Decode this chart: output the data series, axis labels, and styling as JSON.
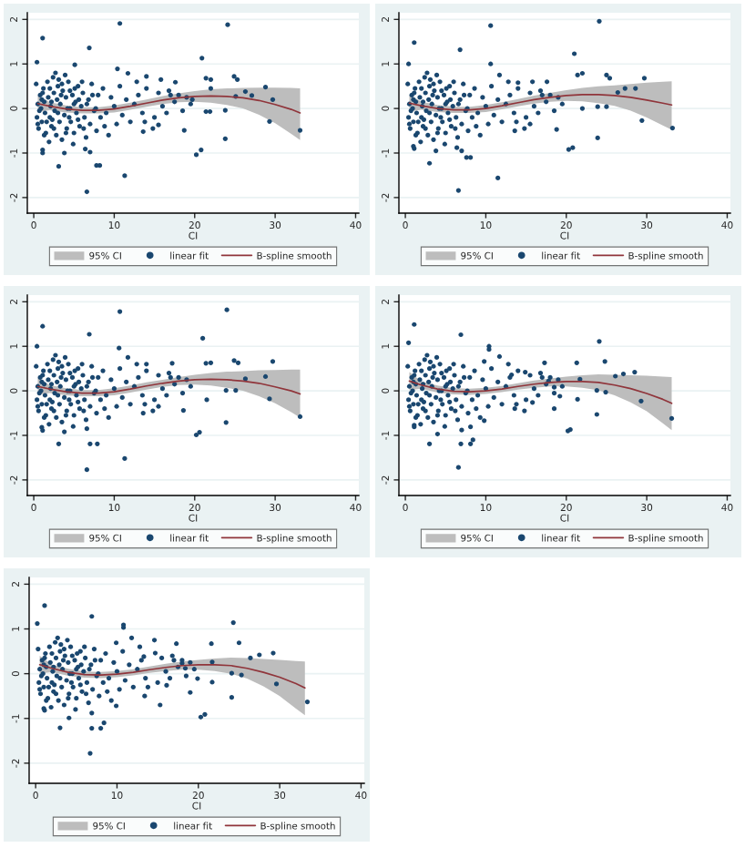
{
  "chart_data": [
    {
      "type": "scatter",
      "xlabel": "CI",
      "xlim": [
        -0.8,
        40.4
      ],
      "ylim": [
        -2.35,
        2.15
      ],
      "xticks": [
        0,
        10,
        20,
        30,
        40
      ],
      "yticks": [
        -2,
        -1,
        0,
        1,
        2
      ],
      "grid": "y",
      "legend": "bottom",
      "annotations": [
        "95% CI"
      ],
      "series": [
        {
          "name": "linear fit",
          "marker": "circle",
          "color": "#1a476f",
          "x": [
            0.3,
            0.4,
            0.5,
            0.6,
            0.8,
            0.9,
            1.0,
            1.2,
            1.3,
            1.4,
            1.5,
            1.7,
            1.8,
            2.0,
            2.1,
            2.2,
            2.4,
            2.5,
            2.6,
            2.8,
            2.9,
            3.0,
            3.2,
            3.3,
            3.5,
            3.6,
            3.8,
            4.0,
            4.1,
            4.3,
            4.5,
            4.6,
            4.8,
            5.0,
            5.2,
            5.3,
            5.5,
            5.7,
            5.9,
            6.1,
            6.3,
            6.5,
            6.8,
            7.0,
            7.2,
            7.5,
            7.8,
            8.0,
            8.3,
            8.6,
            9.0,
            9.3,
            9.6,
            10.0,
            10.3,
            10.7,
            11.0,
            11.5,
            12.0,
            12.5,
            1.1,
            2.3,
            3.4,
            4.4,
            5.6,
            6.6,
            7.7,
            0.7,
            1.9,
            2.7,
            3.9,
            4.9,
            13.0,
            13.5,
            14.0,
            14.8,
            15.0,
            15.5,
            16.0,
            16.5,
            17.0,
            17.5,
            18.0,
            18.5,
            19.0,
            19.5,
            13.8,
            16.8,
            12.8,
            0.5,
            1.0,
            1.6,
            2.0,
            2.5,
            3.0,
            3.5,
            4.0,
            4.5,
            5.0,
            5.5,
            6.0,
            1.3,
            2.2,
            3.1,
            4.2,
            5.1,
            6.2,
            7.3,
            8.8,
            10.7,
            24.1,
            1.1,
            6.9,
            20.9,
            0.4,
            5.1,
            10.4,
            24.9,
            25.3,
            21.4,
            22.0,
            28.8,
            26.3,
            27.1,
            29.7,
            25.1,
            22.0,
            19.7,
            29.3,
            33.1,
            23.8,
            21.9,
            21.4,
            23.8,
            18.7,
            20.8,
            20.2,
            3.1,
            8.2,
            7.8,
            11.3,
            6.6,
            1.1,
            1.1,
            3.8,
            6.4,
            7.0,
            13.6,
            15.5,
            17.6,
            15.8,
            14.0,
            11.7
          ],
          "values": [
            0.55,
            -0.2,
            0.1,
            -0.45,
            0.3,
            0.0,
            -0.3,
            0.45,
            0.15,
            -0.1,
            -0.55,
            0.6,
            0.25,
            -0.2,
            0.05,
            -0.4,
            0.7,
            0.35,
            -0.05,
            -0.6,
            0.2,
            0.5,
            -0.3,
            0.1,
            -0.7,
            0.4,
            -0.15,
            0.25,
            -0.45,
            0.6,
            0.0,
            -0.3,
            0.3,
            -0.55,
            0.15,
            -0.1,
            0.5,
            -0.4,
            0.05,
            0.35,
            -0.2,
            -0.65,
            0.2,
            -0.35,
            0.55,
            -0.05,
            -0.5,
            0.3,
            -0.2,
            0.45,
            -0.1,
            -0.6,
            0.25,
            0.05,
            -0.35,
            0.5,
            -0.15,
            0.2,
            -0.3,
            0.1,
            0.35,
            -0.25,
            0.3,
            -0.2,
            0.2,
            0.1,
            0.0,
            -0.05,
            -0.75,
            0.8,
            0.75,
            -0.8,
            0.3,
            -0.1,
            0.45,
            -0.45,
            -0.2,
            0.35,
            0.05,
            -0.1,
            0.3,
            0.15,
            0.3,
            -0.05,
            0.25,
            0.1,
            -0.3,
            0.4,
            0.6,
            -0.35,
            0.2,
            -0.3,
            0.45,
            -0.45,
            -0.1,
            0.55,
            -0.55,
            0.4,
            0.1,
            -0.25,
            0.6,
            -0.6,
            0.15,
            0.65,
            0.0,
            0.45,
            -0.45,
            0.3,
            -0.4,
            1.91,
            1.88,
            1.58,
            1.36,
            1.13,
            1.04,
            0.98,
            0.89,
            0.72,
            0.65,
            0.68,
            0.65,
            0.48,
            0.38,
            0.29,
            0.2,
            0.27,
            0.45,
            0.2,
            -0.29,
            -0.49,
            -0.04,
            -0.07,
            -0.07,
            -0.68,
            -0.49,
            -0.93,
            -1.04,
            -1.3,
            -1.28,
            -1.28,
            -1.51,
            -1.87,
            -0.93,
            -1.0,
            -1.0,
            -0.91,
            -0.98,
            -0.52,
            -0.37,
            0.59,
            0.65,
            0.72,
            0.79
          ]
        },
        {
          "name": "B-spline smooth",
          "type": "line",
          "color": "#90353b",
          "x": [
            0.5,
            2,
            4,
            6,
            8,
            10,
            12,
            14,
            16,
            18,
            20,
            22,
            24,
            26,
            28,
            30,
            32,
            33.1
          ],
          "values": [
            0.11,
            0.05,
            -0.01,
            -0.04,
            -0.04,
            -0.01,
            0.05,
            0.12,
            0.19,
            0.24,
            0.27,
            0.28,
            0.27,
            0.24,
            0.18,
            0.09,
            -0.02,
            -0.1
          ],
          "lower": [
            -0.08,
            -0.04,
            -0.09,
            -0.11,
            -0.11,
            -0.09,
            -0.03,
            0.04,
            0.1,
            0.14,
            0.15,
            0.13,
            0.08,
            0.0,
            -0.14,
            -0.33,
            -0.57,
            -0.71
          ],
          "upper": [
            0.3,
            0.14,
            0.07,
            0.03,
            0.03,
            0.07,
            0.13,
            0.2,
            0.28,
            0.34,
            0.39,
            0.43,
            0.45,
            0.46,
            0.47,
            0.47,
            0.46,
            0.45
          ]
        }
      ]
    },
    {
      "type": "scatter",
      "xlabel": "CI",
      "xlim": [
        -0.8,
        40.4
      ],
      "ylim": [
        -2.35,
        2.15
      ],
      "xticks": [
        0,
        10,
        20,
        30,
        40
      ],
      "yticks": [
        -2,
        -1,
        0,
        1,
        2
      ],
      "grid": "y",
      "legend": "bottom",
      "annotations": [
        "95% CI"
      ],
      "series": [
        {
          "name": "linear fit",
          "marker": "circle",
          "color": "#1a476f",
          "x": [
            0.3,
            0.4,
            0.5,
            0.6,
            0.8,
            0.9,
            1.0,
            1.2,
            1.3,
            1.4,
            1.5,
            1.7,
            1.8,
            2.0,
            2.1,
            2.2,
            2.4,
            2.5,
            2.6,
            2.8,
            2.9,
            3.0,
            3.2,
            3.3,
            3.5,
            3.6,
            3.8,
            4.0,
            4.1,
            4.3,
            4.5,
            4.6,
            4.8,
            5.0,
            5.2,
            5.3,
            5.5,
            5.7,
            5.9,
            6.1,
            6.3,
            6.5,
            6.8,
            7.0,
            7.2,
            7.5,
            7.8,
            8.0,
            8.3,
            8.6,
            9.0,
            9.3,
            9.6,
            10.0,
            10.3,
            10.7,
            11.0,
            11.5,
            12.0,
            12.5,
            1.1,
            2.3,
            3.4,
            4.4,
            5.6,
            6.6,
            7.7,
            0.7,
            1.9,
            2.7,
            3.9,
            4.9,
            13.0,
            13.5,
            14.0,
            14.8,
            15.0,
            15.5,
            16.0,
            16.5,
            17.0,
            17.5,
            18.0,
            18.5,
            19.0,
            19.5,
            13.8,
            16.8,
            12.8,
            0.5,
            1.0,
            1.6,
            2.0,
            2.5,
            3.0,
            3.5,
            4.0,
            4.5,
            5.0,
            5.5,
            6.0,
            1.3,
            2.2,
            3.1,
            4.2,
            5.1,
            6.2,
            7.3,
            8.8,
            10.6,
            24.1,
            1.1,
            6.8,
            21.0,
            0.4,
            10.6,
            22.0,
            21.4,
            25.0,
            25.4,
            29.7,
            28.6,
            27.3,
            26.4,
            25.0,
            23.9,
            22.0,
            29.4,
            33.2,
            23.9,
            18.8,
            20.3,
            20.8,
            3.0,
            8.1,
            7.6,
            11.5,
            6.6,
            1.0,
            1.1,
            3.8,
            6.4,
            7.0,
            13.6,
            15.5,
            17.6,
            15.8,
            14.0,
            11.7
          ],
          "values": [
            0.55,
            -0.2,
            0.1,
            -0.45,
            0.3,
            0.0,
            -0.3,
            0.45,
            0.15,
            -0.1,
            -0.55,
            0.6,
            0.25,
            -0.2,
            0.05,
            -0.4,
            0.7,
            0.35,
            -0.05,
            -0.6,
            0.2,
            0.5,
            -0.3,
            0.1,
            -0.7,
            0.4,
            -0.15,
            0.25,
            -0.45,
            0.6,
            0.0,
            -0.3,
            0.3,
            -0.55,
            0.15,
            -0.1,
            0.5,
            -0.4,
            0.05,
            0.35,
            -0.2,
            -0.65,
            0.2,
            -0.35,
            0.55,
            -0.05,
            -0.5,
            0.3,
            -0.2,
            0.45,
            -0.1,
            -0.6,
            0.25,
            0.05,
            -0.35,
            0.5,
            -0.15,
            0.2,
            -0.3,
            0.1,
            0.35,
            -0.25,
            0.3,
            -0.2,
            0.2,
            0.1,
            0.0,
            -0.05,
            -0.75,
            0.8,
            0.75,
            -0.8,
            0.3,
            -0.1,
            0.45,
            -0.45,
            -0.2,
            0.35,
            0.05,
            -0.1,
            0.3,
            0.15,
            0.3,
            -0.05,
            0.25,
            0.1,
            -0.3,
            0.4,
            0.6,
            -0.35,
            0.2,
            -0.3,
            0.45,
            -0.45,
            -0.1,
            0.55,
            -0.55,
            0.4,
            0.1,
            -0.25,
            0.6,
            -0.6,
            0.15,
            0.65,
            0.0,
            0.45,
            -0.45,
            0.3,
            -0.4,
            1.86,
            1.96,
            1.48,
            1.32,
            1.23,
            1.0,
            1.0,
            0.79,
            0.75,
            0.75,
            0.68,
            0.68,
            0.45,
            0.45,
            0.36,
            0.04,
            0.04,
            0.0,
            -0.27,
            -0.44,
            -0.66,
            -0.47,
            -0.92,
            -0.88,
            -1.23,
            -1.1,
            -1.1,
            -1.56,
            -1.84,
            -0.85,
            -0.9,
            -0.95,
            -0.88,
            -0.95,
            -0.5,
            -0.35,
            0.6,
            0.6,
            0.58,
            0.75
          ]
        },
        {
          "name": "B-spline smooth",
          "type": "line",
          "color": "#90353b",
          "x": [
            0.5,
            2,
            4,
            6,
            8,
            10,
            12,
            14,
            16,
            18,
            20,
            22,
            24,
            26,
            28,
            30,
            32,
            33.1
          ],
          "values": [
            0.12,
            0.06,
            0.0,
            -0.03,
            -0.03,
            0.0,
            0.06,
            0.13,
            0.2,
            0.25,
            0.29,
            0.31,
            0.31,
            0.29,
            0.25,
            0.19,
            0.12,
            0.08
          ],
          "lower": [
            -0.07,
            -0.03,
            -0.08,
            -0.1,
            -0.1,
            -0.08,
            -0.02,
            0.05,
            0.11,
            0.15,
            0.17,
            0.16,
            0.12,
            0.06,
            -0.05,
            -0.2,
            -0.38,
            -0.48
          ],
          "upper": [
            0.31,
            0.15,
            0.08,
            0.04,
            0.04,
            0.08,
            0.14,
            0.21,
            0.29,
            0.35,
            0.41,
            0.46,
            0.5,
            0.52,
            0.55,
            0.58,
            0.6,
            0.61
          ]
        }
      ]
    },
    {
      "type": "scatter",
      "xlabel": "CI",
      "xlim": [
        -0.8,
        40.4
      ],
      "ylim": [
        -2.35,
        2.15
      ],
      "xticks": [
        0,
        10,
        20,
        30,
        40
      ],
      "yticks": [
        -2,
        -1,
        0,
        1,
        2
      ],
      "grid": "y",
      "legend": "bottom",
      "annotations": [
        "95% CI"
      ],
      "series": [
        {
          "name": "linear fit",
          "marker": "circle",
          "color": "#1a476f",
          "x": [
            0.3,
            0.4,
            0.5,
            0.6,
            0.8,
            0.9,
            1.0,
            1.2,
            1.3,
            1.4,
            1.5,
            1.7,
            1.8,
            2.0,
            2.1,
            2.2,
            2.4,
            2.5,
            2.6,
            2.8,
            2.9,
            3.0,
            3.2,
            3.3,
            3.5,
            3.6,
            3.8,
            4.0,
            4.1,
            4.3,
            4.5,
            4.6,
            4.8,
            5.0,
            5.2,
            5.3,
            5.5,
            5.7,
            5.9,
            6.1,
            6.3,
            6.5,
            6.8,
            7.0,
            7.2,
            7.5,
            7.8,
            8.0,
            8.3,
            8.6,
            9.0,
            9.3,
            9.6,
            10.0,
            10.3,
            10.7,
            11.0,
            11.5,
            12.0,
            12.5,
            1.1,
            2.3,
            3.4,
            4.4,
            5.6,
            6.6,
            7.7,
            0.7,
            1.9,
            2.7,
            3.9,
            4.9,
            13.0,
            13.5,
            14.0,
            14.8,
            15.0,
            15.5,
            16.0,
            16.5,
            17.0,
            17.5,
            18.0,
            18.5,
            19.0,
            19.5,
            13.8,
            16.8,
            12.8,
            0.5,
            1.0,
            1.6,
            2.0,
            2.5,
            3.0,
            3.5,
            4.0,
            4.5,
            5.0,
            5.5,
            6.0,
            1.3,
            2.2,
            3.1,
            4.2,
            5.1,
            6.2,
            7.3,
            8.8,
            10.7,
            24.0,
            1.1,
            6.9,
            21.0,
            0.4,
            10.6,
            24.9,
            25.4,
            29.7,
            21.4,
            22.0,
            17.2,
            28.8,
            26.3,
            25.1,
            23.9,
            21.5,
            29.3,
            33.1,
            23.9,
            18.6,
            20.2,
            20.6,
            3.1,
            7.0,
            7.9,
            11.3,
            6.6,
            1.0,
            1.1,
            3.8,
            6.6,
            13.6,
            15.5,
            14.0,
            11.7
          ],
          "values": [
            0.55,
            -0.2,
            0.1,
            -0.45,
            0.3,
            0.0,
            -0.3,
            0.45,
            0.15,
            -0.1,
            -0.55,
            0.6,
            0.25,
            -0.2,
            0.05,
            -0.4,
            0.7,
            0.35,
            -0.05,
            -0.6,
            0.2,
            0.5,
            -0.3,
            0.1,
            -0.7,
            0.4,
            -0.15,
            0.25,
            -0.45,
            0.6,
            0.0,
            -0.3,
            0.3,
            -0.55,
            0.15,
            -0.1,
            0.5,
            -0.4,
            0.05,
            0.35,
            -0.2,
            -0.65,
            0.2,
            -0.35,
            0.55,
            -0.05,
            -0.5,
            0.3,
            -0.2,
            0.45,
            -0.1,
            -0.6,
            0.25,
            0.05,
            -0.35,
            0.5,
            -0.15,
            0.2,
            -0.3,
            0.1,
            0.35,
            -0.25,
            0.3,
            -0.2,
            0.2,
            0.1,
            0.0,
            -0.05,
            -0.75,
            0.8,
            0.75,
            -0.8,
            0.3,
            -0.1,
            0.45,
            -0.45,
            -0.2,
            0.35,
            0.05,
            -0.1,
            0.3,
            0.15,
            0.3,
            -0.05,
            0.25,
            0.1,
            -0.3,
            0.4,
            0.6,
            -0.35,
            0.2,
            -0.3,
            0.45,
            -0.45,
            -0.1,
            0.55,
            -0.55,
            0.4,
            0.1,
            -0.25,
            0.6,
            -0.6,
            0.15,
            0.65,
            0.0,
            0.45,
            -0.45,
            0.3,
            -0.4,
            1.78,
            1.82,
            1.45,
            1.27,
            1.18,
            1.0,
            0.96,
            0.68,
            0.63,
            0.66,
            0.62,
            0.63,
            0.62,
            0.32,
            0.27,
            0.01,
            0.01,
            -0.2,
            -0.18,
            -0.58,
            -0.71,
            -0.44,
            -0.99,
            -0.93,
            -1.19,
            -1.19,
            -1.19,
            -1.52,
            -1.77,
            -0.82,
            -0.89,
            -0.92,
            -0.85,
            -0.5,
            -0.35,
            0.6,
            0.75
          ]
        },
        {
          "name": "B-spline smooth",
          "type": "line",
          "color": "#90353b",
          "x": [
            0.5,
            2,
            4,
            6,
            8,
            10,
            12,
            14,
            16,
            18,
            20,
            22,
            24,
            26,
            28,
            30,
            32,
            33.1
          ],
          "values": [
            0.1,
            0.04,
            -0.02,
            -0.05,
            -0.05,
            -0.02,
            0.04,
            0.11,
            0.17,
            0.22,
            0.25,
            0.26,
            0.25,
            0.22,
            0.17,
            0.09,
            0.0,
            -0.07
          ],
          "lower": [
            -0.09,
            -0.05,
            -0.1,
            -0.12,
            -0.12,
            -0.1,
            -0.04,
            0.03,
            0.09,
            0.13,
            0.14,
            0.12,
            0.07,
            0.0,
            -0.12,
            -0.28,
            -0.48,
            -0.6
          ],
          "upper": [
            0.29,
            0.13,
            0.06,
            0.02,
            0.02,
            0.06,
            0.12,
            0.19,
            0.25,
            0.31,
            0.36,
            0.4,
            0.43,
            0.44,
            0.46,
            0.47,
            0.48,
            0.48
          ]
        }
      ]
    },
    {
      "type": "scatter",
      "xlabel": "CI",
      "xlim": [
        -0.8,
        40.4
      ],
      "ylim": [
        -2.35,
        2.15
      ],
      "xticks": [
        0,
        10,
        20,
        30,
        40
      ],
      "yticks": [
        -2,
        -1,
        0,
        1,
        2
      ],
      "grid": "y",
      "legend": "bottom",
      "annotations": [
        "95% CI"
      ],
      "series": [
        {
          "name": "linear fit",
          "marker": "circle",
          "color": "#1a476f",
          "x": [
            0.3,
            0.4,
            0.5,
            0.6,
            0.8,
            0.9,
            1.0,
            1.2,
            1.3,
            1.4,
            1.5,
            1.7,
            1.8,
            2.0,
            2.1,
            2.2,
            2.4,
            2.5,
            2.6,
            2.8,
            2.9,
            3.0,
            3.2,
            3.3,
            3.5,
            3.6,
            3.8,
            4.0,
            4.1,
            4.3,
            4.5,
            4.6,
            4.8,
            5.0,
            5.2,
            5.3,
            5.5,
            5.7,
            5.9,
            6.1,
            6.3,
            6.5,
            6.8,
            7.0,
            7.2,
            7.5,
            7.8,
            8.0,
            8.3,
            8.6,
            9.0,
            9.3,
            9.6,
            10.0,
            10.3,
            10.7,
            11.0,
            11.5,
            12.0,
            12.5,
            1.1,
            2.3,
            3.4,
            4.4,
            5.6,
            6.6,
            7.7,
            0.7,
            1.9,
            2.7,
            3.9,
            4.9,
            13.0,
            13.5,
            14.0,
            14.8,
            15.0,
            15.5,
            16.0,
            16.5,
            17.0,
            17.5,
            18.0,
            18.5,
            19.0,
            19.5,
            13.8,
            16.8,
            12.8,
            0.5,
            1.0,
            1.6,
            2.0,
            2.5,
            3.0,
            3.5,
            4.0,
            4.5,
            5.0,
            5.5,
            6.0,
            1.3,
            2.2,
            3.1,
            4.2,
            5.1,
            6.2,
            7.3,
            8.8,
            1.1,
            6.9,
            24.1,
            0.4,
            10.4,
            10.4,
            24.8,
            21.3,
            17.3,
            28.5,
            27.1,
            26.1,
            21.7,
            29.3,
            33.1,
            23.8,
            24.9,
            23.8,
            21.4,
            18.5,
            20.2,
            20.5,
            3.0,
            6.9,
            8.1,
            8.4,
            6.6,
            1.1,
            1.1,
            4.0,
            7.0,
            8.1,
            9.8,
            13.6,
            15.8,
            19.2,
            18.5,
            17.8,
            14.9,
            13.2,
            11.7,
            9.8
          ],
          "values": [
            0.55,
            -0.2,
            0.1,
            -0.45,
            0.3,
            0.0,
            -0.3,
            0.45,
            0.15,
            -0.1,
            -0.55,
            0.6,
            0.25,
            -0.2,
            0.05,
            -0.4,
            0.7,
            0.35,
            -0.05,
            -0.6,
            0.2,
            0.5,
            -0.3,
            0.1,
            -0.7,
            0.4,
            -0.15,
            0.25,
            -0.45,
            0.6,
            0.0,
            -0.3,
            0.3,
            -0.55,
            0.15,
            -0.1,
            0.5,
            -0.4,
            0.05,
            0.35,
            -0.2,
            -0.65,
            0.2,
            -0.35,
            0.55,
            -0.05,
            -0.5,
            0.3,
            -0.2,
            0.45,
            -0.1,
            -0.6,
            0.25,
            0.05,
            -0.35,
            0.5,
            -0.15,
            0.2,
            -0.3,
            0.1,
            0.35,
            -0.25,
            0.3,
            -0.2,
            0.2,
            0.1,
            0.0,
            -0.05,
            -0.75,
            0.8,
            0.75,
            -0.8,
            0.3,
            -0.1,
            0.45,
            -0.45,
            -0.2,
            0.35,
            0.05,
            -0.1,
            0.3,
            0.15,
            0.3,
            -0.05,
            0.25,
            0.1,
            -0.3,
            0.4,
            0.6,
            -0.35,
            0.2,
            -0.3,
            0.45,
            -0.45,
            -0.1,
            0.55,
            -0.55,
            0.4,
            0.1,
            -0.25,
            0.6,
            -0.6,
            0.15,
            0.65,
            0.0,
            0.45,
            -0.45,
            0.3,
            -0.4,
            1.49,
            1.26,
            1.11,
            1.08,
            1.0,
            0.93,
            0.66,
            0.63,
            0.63,
            0.42,
            0.38,
            0.33,
            0.26,
            -0.23,
            -0.62,
            -0.53,
            -0.03,
            0.01,
            -0.19,
            -0.4,
            -0.9,
            -0.87,
            -1.19,
            -1.19,
            -1.19,
            -1.1,
            -1.72,
            -0.77,
            -0.81,
            -0.97,
            -0.88,
            -0.81,
            -0.67,
            -0.4,
            -0.26,
            -0.12,
            0.08,
            0.22,
            0.42,
            0.36,
            0.77,
            0.66
          ]
        },
        {
          "name": "B-spline smooth",
          "type": "line",
          "color": "#90353b",
          "x": [
            0.5,
            2,
            4,
            6,
            8,
            10,
            12,
            14,
            16,
            18,
            20,
            22,
            24,
            26,
            28,
            30,
            32,
            33.1
          ],
          "values": [
            0.22,
            0.13,
            0.04,
            -0.01,
            -0.02,
            0.0,
            0.04,
            0.1,
            0.15,
            0.19,
            0.21,
            0.21,
            0.19,
            0.13,
            0.05,
            -0.06,
            -0.19,
            -0.28
          ],
          "lower": [
            0.02,
            0.05,
            -0.04,
            -0.08,
            -0.09,
            -0.07,
            -0.03,
            0.03,
            0.07,
            0.1,
            0.1,
            0.07,
            0.01,
            -0.1,
            -0.26,
            -0.46,
            -0.73,
            -0.88
          ],
          "upper": [
            0.42,
            0.21,
            0.12,
            0.06,
            0.05,
            0.07,
            0.11,
            0.17,
            0.23,
            0.28,
            0.32,
            0.35,
            0.37,
            0.36,
            0.35,
            0.34,
            0.32,
            0.31
          ]
        }
      ]
    },
    {
      "type": "scatter",
      "xlabel": "CI",
      "xlim": [
        -0.8,
        40.4
      ],
      "ylim": [
        -2.45,
        2.15
      ],
      "xticks": [
        0,
        10,
        20,
        30,
        40
      ],
      "yticks": [
        -2,
        -1,
        0,
        1,
        2
      ],
      "grid": "y",
      "legend": "bottom",
      "annotations": [
        "95% CI"
      ],
      "series": [
        {
          "name": "linear fit",
          "marker": "circle",
          "color": "#1a476f",
          "x": [
            0.3,
            0.4,
            0.5,
            0.6,
            0.8,
            0.9,
            1.0,
            1.2,
            1.3,
            1.4,
            1.5,
            1.7,
            1.8,
            2.0,
            2.1,
            2.2,
            2.4,
            2.5,
            2.6,
            2.8,
            2.9,
            3.0,
            3.2,
            3.3,
            3.5,
            3.6,
            3.8,
            4.0,
            4.1,
            4.3,
            4.5,
            4.6,
            4.8,
            5.0,
            5.2,
            5.3,
            5.5,
            5.7,
            5.9,
            6.1,
            6.3,
            6.5,
            6.8,
            7.0,
            7.2,
            7.5,
            7.8,
            8.0,
            8.3,
            8.6,
            9.0,
            9.3,
            9.6,
            10.0,
            10.3,
            10.7,
            11.0,
            11.5,
            12.0,
            12.5,
            1.1,
            2.3,
            3.4,
            4.4,
            5.6,
            6.6,
            7.7,
            0.7,
            1.9,
            2.7,
            3.9,
            4.9,
            13.0,
            13.5,
            14.6,
            15.3,
            15.0,
            15.5,
            16.0,
            16.5,
            17.0,
            17.5,
            18.0,
            18.5,
            19.0,
            19.5,
            13.8,
            16.8,
            12.8,
            0.5,
            1.0,
            1.6,
            2.0,
            2.5,
            3.0,
            3.5,
            4.0,
            4.5,
            5.0,
            5.5,
            6.0,
            1.3,
            2.2,
            3.1,
            4.2,
            5.1,
            6.2,
            7.3,
            8.8,
            1.1,
            6.9,
            24.3,
            0.2,
            10.8,
            10.8,
            25.0,
            21.6,
            17.3,
            29.2,
            27.5,
            26.4,
            21.7,
            29.6,
            33.4,
            24.1,
            25.3,
            24.1,
            21.7,
            19.0,
            20.3,
            20.8,
            3.0,
            6.9,
            8.0,
            8.4,
            6.7,
            1.0,
            1.1,
            4.1,
            6.9,
            9.9,
            13.4,
            16.1,
            19.9,
            18.4,
            18.0,
            14.7,
            13.3,
            11.8,
            9.9
          ],
          "values": [
            0.55,
            -0.2,
            0.1,
            -0.45,
            0.3,
            0.0,
            -0.3,
            0.45,
            0.15,
            -0.1,
            -0.55,
            0.6,
            0.25,
            -0.2,
            0.05,
            -0.4,
            0.7,
            0.35,
            -0.05,
            -0.6,
            0.2,
            0.5,
            -0.3,
            0.1,
            -0.7,
            0.4,
            -0.15,
            0.25,
            -0.45,
            0.6,
            0.0,
            -0.3,
            0.3,
            -0.55,
            0.15,
            -0.1,
            0.5,
            -0.4,
            0.05,
            0.35,
            -0.2,
            -0.65,
            0.2,
            -0.35,
            0.55,
            -0.05,
            -0.5,
            0.3,
            -0.2,
            0.45,
            -0.1,
            -0.6,
            0.25,
            0.05,
            -0.35,
            0.5,
            -0.15,
            0.2,
            -0.3,
            0.1,
            0.35,
            -0.25,
            0.3,
            -0.2,
            0.2,
            0.1,
            0.0,
            -0.05,
            -0.75,
            0.8,
            0.75,
            -0.8,
            0.3,
            -0.1,
            0.75,
            -0.7,
            -0.2,
            0.35,
            0.05,
            -0.1,
            0.3,
            0.15,
            0.3,
            -0.05,
            0.25,
            0.1,
            -0.3,
            0.4,
            0.6,
            -0.35,
            0.2,
            -0.3,
            0.45,
            -0.45,
            -0.1,
            0.55,
            -0.55,
            0.4,
            0.1,
            -0.25,
            0.6,
            -0.6,
            0.15,
            0.65,
            0.0,
            0.45,
            -0.45,
            0.3,
            -0.4,
            1.52,
            1.28,
            1.14,
            1.12,
            1.09,
            1.03,
            0.69,
            0.67,
            0.67,
            0.46,
            0.42,
            0.35,
            0.26,
            -0.23,
            -0.63,
            -0.53,
            -0.03,
            0.01,
            -0.19,
            -0.42,
            -0.97,
            -0.91,
            -1.21,
            -1.22,
            -1.22,
            -1.1,
            -1.78,
            -0.78,
            -0.82,
            -0.99,
            -0.88,
            -0.72,
            -0.5,
            -0.26,
            -0.11,
            0.12,
            0.23,
            0.46,
            0.38,
            0.8,
            0.69
          ]
        },
        {
          "name": "B-spline smooth",
          "type": "line",
          "color": "#90353b",
          "x": [
            0.5,
            2,
            4,
            6,
            8,
            10,
            12,
            14,
            16,
            18,
            20,
            22,
            24,
            26,
            28,
            30,
            32,
            33.1
          ],
          "values": [
            0.2,
            0.12,
            0.03,
            -0.02,
            -0.03,
            -0.01,
            0.03,
            0.09,
            0.14,
            0.18,
            0.2,
            0.2,
            0.18,
            0.12,
            0.03,
            -0.08,
            -0.22,
            -0.32
          ],
          "lower": [
            0.0,
            0.04,
            -0.05,
            -0.09,
            -0.1,
            -0.08,
            -0.04,
            0.02,
            0.06,
            0.09,
            0.09,
            0.06,
            0.0,
            -0.11,
            -0.28,
            -0.5,
            -0.78,
            -0.93
          ],
          "upper": [
            0.4,
            0.2,
            0.11,
            0.05,
            0.04,
            0.06,
            0.1,
            0.16,
            0.22,
            0.27,
            0.31,
            0.34,
            0.36,
            0.35,
            0.33,
            0.31,
            0.28,
            0.27
          ]
        }
      ]
    }
  ]
}
